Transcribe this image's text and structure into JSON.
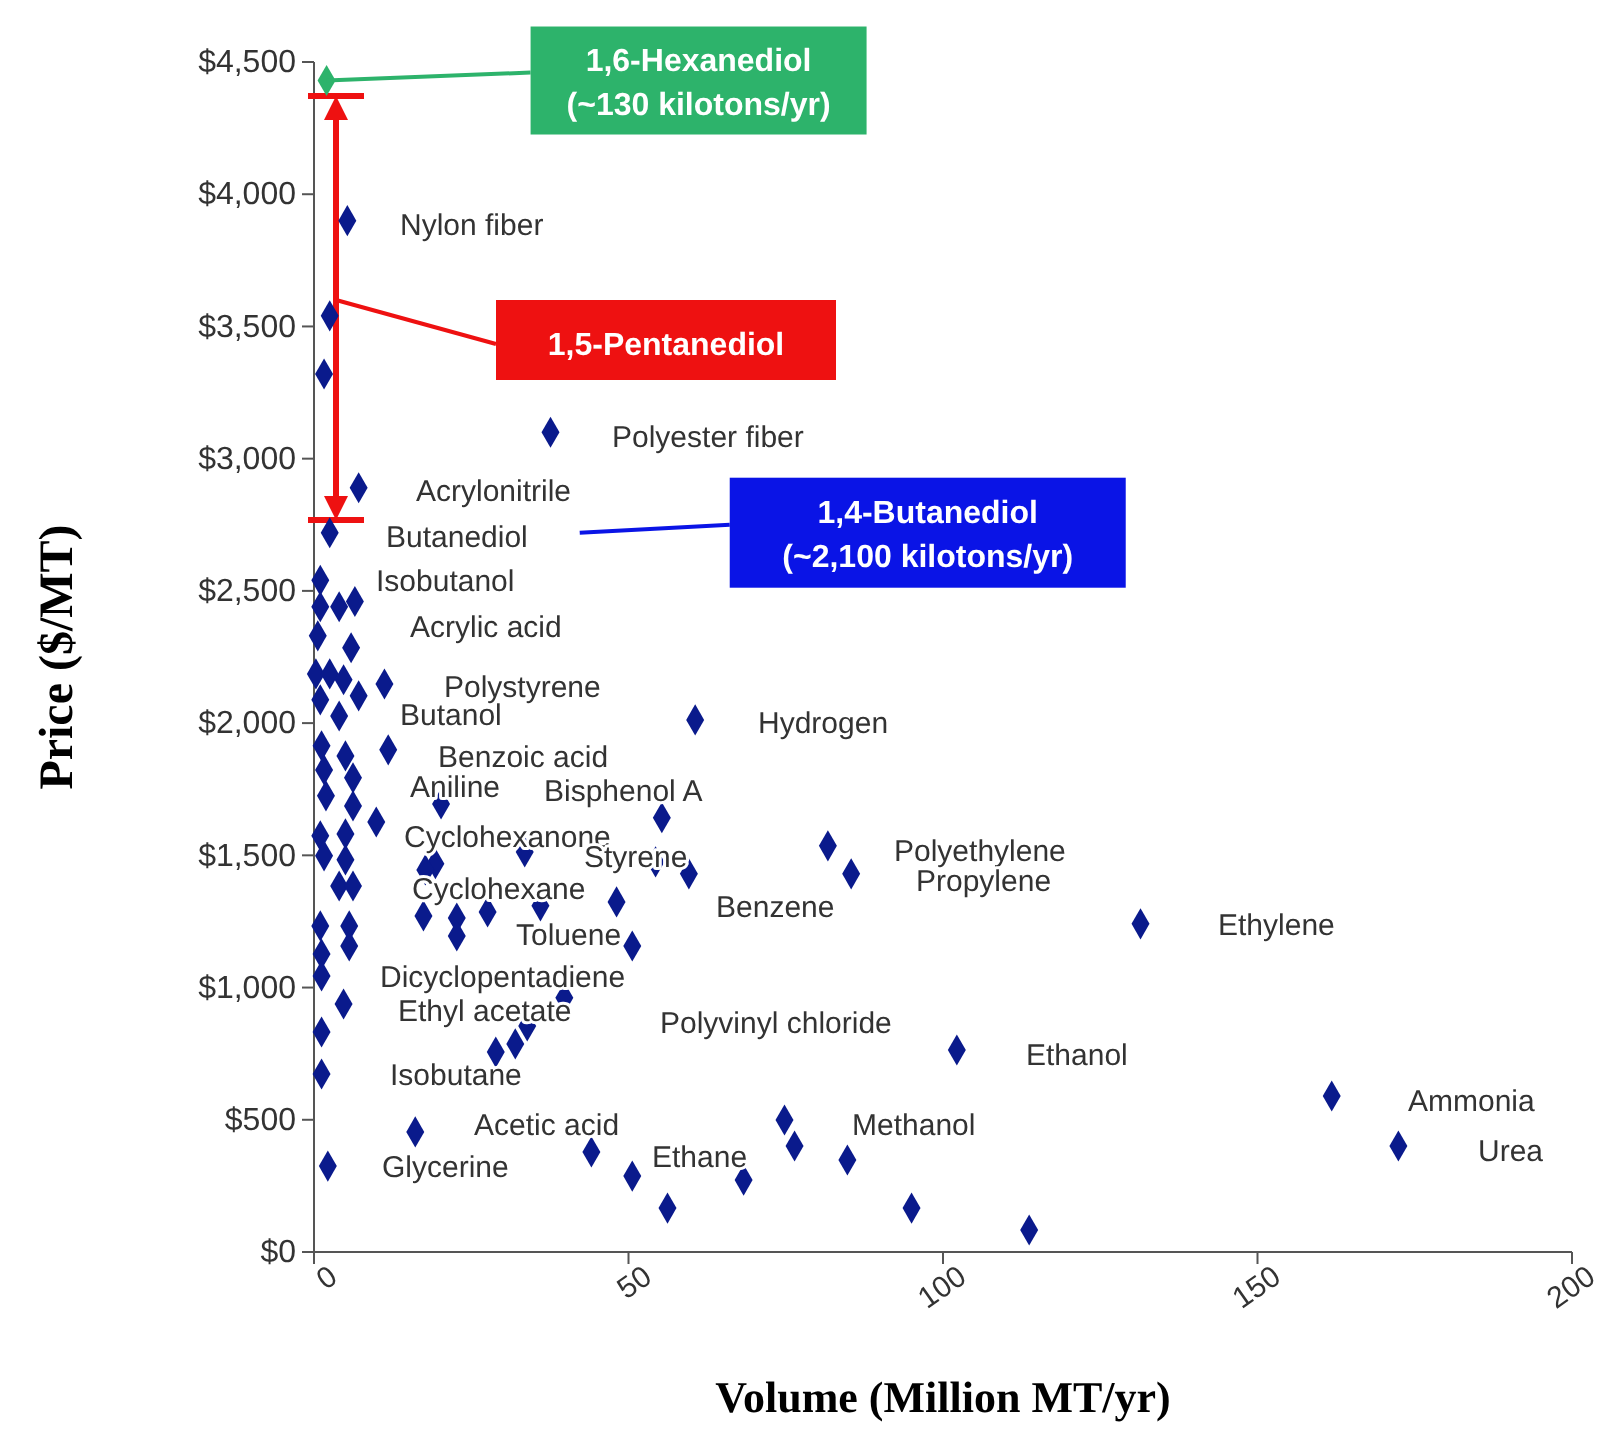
{
  "chart_data": {
    "type": "scatter",
    "xlabel": "Volume (Million MT/yr)",
    "ylabel": "Price ($/MT)",
    "marker": "diamond",
    "grid": false,
    "xlim": [
      0,
      200
    ],
    "xticks": [
      0,
      50,
      100,
      150,
      200
    ],
    "ylim": [
      0,
      4500
    ],
    "yticks": [
      {
        "value": 0,
        "label": "$0"
      },
      {
        "value": 500,
        "label": "$500"
      },
      {
        "value": 1000,
        "label": "$1,000"
      },
      {
        "value": 1500,
        "label": "$1,500"
      },
      {
        "value": 2000,
        "label": "$2,000"
      },
      {
        "value": 2500,
        "label": "$2,500"
      },
      {
        "value": 3000,
        "label": "$3,000"
      },
      {
        "value": 3500,
        "label": "$3,500"
      },
      {
        "value": 4000,
        "label": "$4,000"
      },
      {
        "value": 4500,
        "label": "$4,500"
      }
    ],
    "series": [
      {
        "color": "#0a1a8c",
        "x": [
          5.3,
          2.5,
          1.6,
          37.6,
          7.1,
          1,
          1,
          4,
          6.5,
          0.6,
          5.9,
          0.3,
          2.5,
          4.7,
          7.1,
          11.2,
          1,
          4,
          60.6,
          11.8,
          1.2,
          5,
          1.6,
          6.2,
          1.9,
          6.2,
          9.9,
          20.2,
          55.3,
          1,
          5,
          1.6,
          5,
          19.3,
          17.7,
          33.5,
          54.3,
          59.6,
          81.7,
          85.4,
          4,
          6.2,
          36,
          48.1,
          17.4,
          22.7,
          27.6,
          22.7,
          1,
          5.6,
          50.6,
          1.2,
          5.6,
          1.2,
          4.7,
          39.8,
          33.9,
          32,
          28.9,
          1.2,
          1.2,
          16.1,
          44.1,
          50.6,
          56.2,
          68.3,
          74.8,
          76.4,
          84.8,
          95,
          2.2,
          131.4,
          102.2,
          161.8,
          172.4,
          113.7
        ],
        "values": [
          3900,
          3540,
          3320,
          3100,
          2890,
          2540,
          2440,
          2440,
          2460,
          2330,
          2285,
          2186,
          2186,
          2164,
          2103,
          2148,
          2088,
          2027,
          2012,
          1899,
          1914,
          1876,
          1823,
          1793,
          1725,
          1687,
          1626,
          1694,
          1642,
          1574,
          1581,
          1498,
          1483,
          1468,
          1445,
          1513,
          1475,
          1430,
          1536,
          1430,
          1384,
          1384,
          1309,
          1324,
          1271,
          1263,
          1286,
          1195,
          1233,
          1233,
          1157,
          1127,
          1157,
          1044,
          938,
          961,
          855,
          787,
          756,
          832,
          673,
          454,
          378,
          287,
          166,
          272,
          499,
          401,
          348,
          166,
          325,
          1241,
          764,
          590,
          401,
          83
        ]
      },
      {
        "name": "1,6-Hexanediol\n(~130 kilotons/yr)",
        "color": "#2db36b",
        "x": [
          2
        ],
        "values": [
          4430
        ]
      },
      {
        "name": "1,4-Butanediol\n(~2,100 kilotons/yr)",
        "color": "#0a1a8c",
        "x": [
          2.5
        ],
        "values": [
          2720
        ]
      }
    ],
    "annotations": [
      "1,5-Pentanediol",
      "Nylon fiber",
      "Polyester fiber",
      "Acrylonitrile",
      "Butanediol",
      "Isobutanol",
      "Acrylic acid",
      "Polystyrene",
      "Butanol",
      "Hydrogen",
      "Benzoic acid",
      "Aniline",
      "Bisphenol A",
      "Cyclohexanone",
      "Styrene",
      "Polyethylene",
      "Cyclohexane",
      "Propylene",
      "Benzene",
      "Ethylene",
      "Toluene",
      "Dicyclopentadiene",
      "Ethyl acetate",
      "Polyvinyl chloride",
      "Ethanol",
      "Isobutane",
      "Acetic acid",
      "Methanol",
      "Ammonia",
      "Glycerine",
      "Ethane",
      "Urea"
    ]
  }
}
